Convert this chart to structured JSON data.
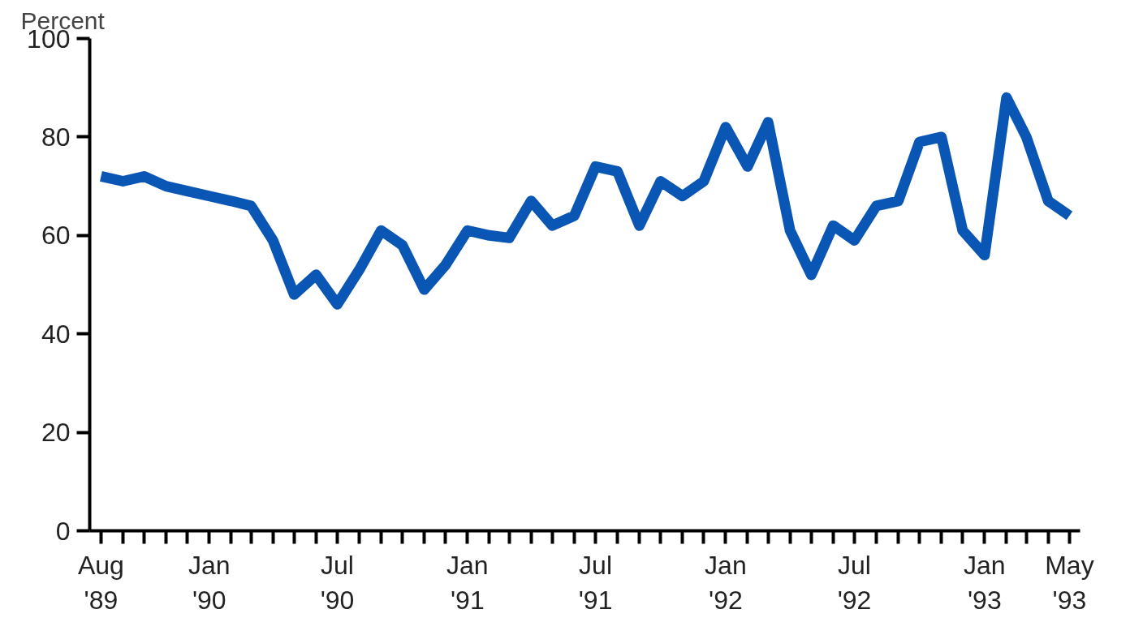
{
  "chart_data": {
    "type": "line",
    "ylabel": "Percent",
    "x": [
      "1989-08",
      "1989-09",
      "1989-10",
      "1989-11",
      "1989-12",
      "1990-01",
      "1990-02",
      "1990-03",
      "1990-04",
      "1990-05",
      "1990-06",
      "1990-07",
      "1990-08",
      "1990-09",
      "1990-10",
      "1990-11",
      "1990-12",
      "1991-01",
      "1991-02",
      "1991-03",
      "1991-04",
      "1991-05",
      "1991-06",
      "1991-07",
      "1991-08",
      "1991-09",
      "1991-10",
      "1991-11",
      "1991-12",
      "1992-01",
      "1992-02",
      "1992-03",
      "1992-04",
      "1992-05",
      "1992-06",
      "1992-07",
      "1992-08",
      "1992-09",
      "1992-10",
      "1992-11",
      "1992-12",
      "1993-01",
      "1993-02",
      "1993-03",
      "1993-04",
      "1993-05"
    ],
    "series": [
      {
        "color": "#0a56b4",
        "values": [
          72,
          71,
          72,
          70,
          69,
          68,
          67,
          66,
          59,
          48,
          52,
          46,
          53,
          61,
          58,
          49,
          54,
          61,
          60,
          59.5,
          67,
          62,
          64,
          74,
          73,
          62,
          71,
          68,
          71,
          82,
          74,
          83,
          61,
          52,
          62,
          59,
          66,
          67,
          79,
          80,
          61,
          56,
          88,
          80,
          67,
          64
        ]
      }
    ],
    "xlim": [
      "1989-07-16",
      "1993-05-16"
    ],
    "xticks": [
      {
        "value": "1989-08",
        "label": "Aug\n'89"
      },
      {
        "value": "1989-09",
        "label": null
      },
      {
        "value": "1989-10",
        "label": null
      },
      {
        "value": "1989-11",
        "label": null
      },
      {
        "value": "1989-12",
        "label": null
      },
      {
        "value": "1990-01",
        "label": "Jan\n'90"
      },
      {
        "value": "1990-02",
        "label": null
      },
      {
        "value": "1990-03",
        "label": null
      },
      {
        "value": "1990-04",
        "label": null
      },
      {
        "value": "1990-05",
        "label": null
      },
      {
        "value": "1990-06",
        "label": null
      },
      {
        "value": "1990-07",
        "label": "Jul\n'90"
      },
      {
        "value": "1990-08",
        "label": null
      },
      {
        "value": "1990-09",
        "label": null
      },
      {
        "value": "1990-10",
        "label": null
      },
      {
        "value": "1990-11",
        "label": null
      },
      {
        "value": "1990-12",
        "label": null
      },
      {
        "value": "1991-01",
        "label": "Jan\n'91"
      },
      {
        "value": "1991-02",
        "label": null
      },
      {
        "value": "1991-03",
        "label": null
      },
      {
        "value": "1991-04",
        "label": null
      },
      {
        "value": "1991-05",
        "label": null
      },
      {
        "value": "1991-06",
        "label": null
      },
      {
        "value": "1991-07",
        "label": "Jul\n'91"
      },
      {
        "value": "1991-08",
        "label": null
      },
      {
        "value": "1991-09",
        "label": null
      },
      {
        "value": "1991-10",
        "label": null
      },
      {
        "value": "1991-11",
        "label": null
      },
      {
        "value": "1991-12",
        "label": null
      },
      {
        "value": "1992-01",
        "label": "Jan\n'92"
      },
      {
        "value": "1992-02",
        "label": null
      },
      {
        "value": "1992-03",
        "label": null
      },
      {
        "value": "1992-04",
        "label": null
      },
      {
        "value": "1992-05",
        "label": null
      },
      {
        "value": "1992-06",
        "label": null
      },
      {
        "value": "1992-07",
        "label": "Jul\n'92"
      },
      {
        "value": "1992-08",
        "label": null
      },
      {
        "value": "1992-09",
        "label": null
      },
      {
        "value": "1992-10",
        "label": null
      },
      {
        "value": "1992-11",
        "label": null
      },
      {
        "value": "1992-12",
        "label": null
      },
      {
        "value": "1993-01",
        "label": "Jan\n'93"
      },
      {
        "value": "1993-02",
        "label": null
      },
      {
        "value": "1993-03",
        "label": null
      },
      {
        "value": "1993-04",
        "label": null
      },
      {
        "value": "1993-05",
        "label": "May\n'93"
      }
    ],
    "ylim": [
      0,
      100
    ],
    "yticks": [
      0,
      20,
      40,
      60,
      80,
      100
    ],
    "grid": false,
    "marker": "none",
    "line_style": "solid"
  }
}
